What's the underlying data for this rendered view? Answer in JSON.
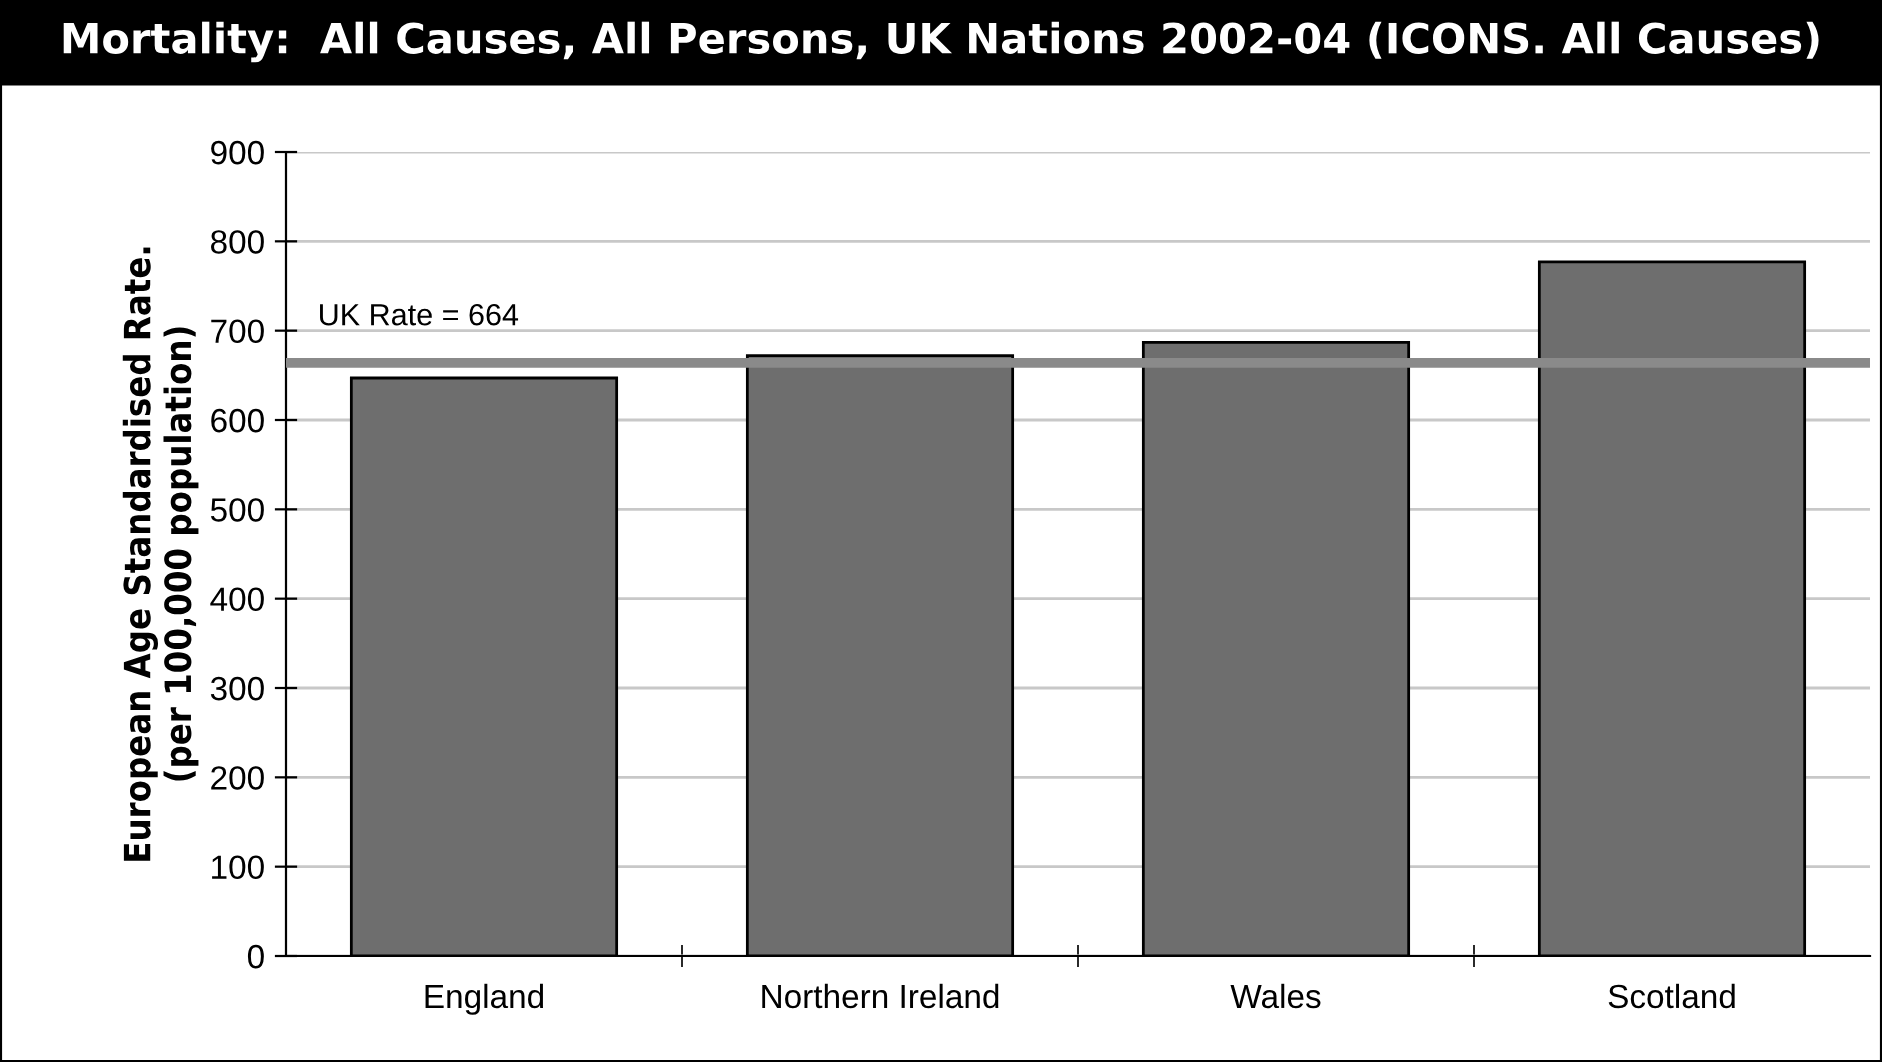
{
  "chart_data": {
    "type": "bar",
    "title": "Mortality:  All Causes, All Persons, UK Nations 2002-04 (ICONS. All Causes)",
    "ylabel": "European Age Standardised Rate.\n(per 100,000 population)",
    "categories": [
      "England",
      "Northern Ireland",
      "Wales",
      "Scotland"
    ],
    "values": [
      647,
      672,
      687,
      777
    ],
    "color": "#6e6e6e",
    "ylim": [
      0,
      900
    ],
    "yticks": [
      0,
      100,
      200,
      300,
      400,
      500,
      600,
      700,
      800,
      900
    ],
    "grid": "y",
    "ref_lines": [
      {
        "axis": "y",
        "value": 664,
        "label": "UK Rate = 664",
        "color": "#8a8a8a"
      }
    ]
  }
}
